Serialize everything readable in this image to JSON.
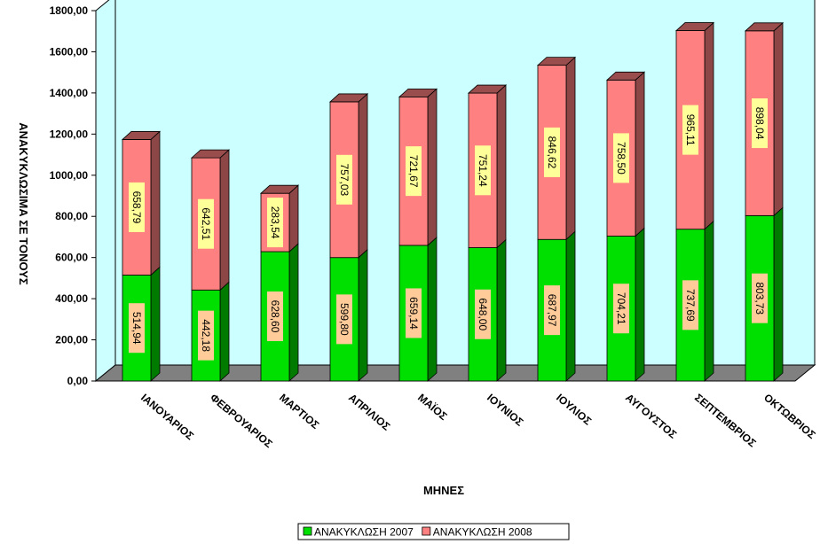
{
  "chart_data": {
    "type": "bar",
    "stacked": true,
    "three_d": true,
    "categories": [
      "ΙΑΝΟΥΑΡΙΟΣ",
      "ΦΕΒΡΟΥΑΡΙΟΣ",
      "ΜΑΡΤΙΟΣ",
      "ΑΠΡΙΛΙΟΣ",
      "ΜΑΪΟΣ",
      "ΙΟΥΝΙΟΣ",
      "ΙΟΥΛΙΟΣ",
      "ΑΥΓΟΥΣΤΟΣ",
      "ΣΕΠΤΕΜΒΡΙΟΣ",
      "ΟΚΤΩΒΡΙΟΣ"
    ],
    "series": [
      {
        "name": "ΑΝΑΚΥΚΛΩΣΗ 2007",
        "color": "#00e000",
        "label_bg": "#ffcc99",
        "values": [
          514.94,
          442.18,
          628.6,
          599.8,
          659.14,
          648.0,
          687.97,
          704.21,
          737.69,
          803.73
        ],
        "labels": [
          "514,94",
          "442,18",
          "628,60",
          "599,80",
          "659,14",
          "648,00",
          "687,97",
          "704,21",
          "737,69",
          "803,73"
        ]
      },
      {
        "name": "ΑΝΑΚΥΚΛΩΣΗ 2008",
        "color": "#ff8080",
        "label_bg": "#ffff99",
        "values": [
          658.79,
          642.51,
          283.54,
          757.03,
          721.67,
          751.24,
          846.62,
          758.5,
          965.11,
          898.04
        ],
        "labels": [
          "658,79",
          "642,51",
          "283,54",
          "757,03",
          "721,67",
          "751,24",
          "846,62",
          "758,50",
          "965,11",
          "898,04"
        ]
      }
    ],
    "xlabel": "ΜΗΝΕΣ",
    "ylabel": "ΑΝΑΚΥΚΛΩΣΙΜΑ ΣΕ ΤΟΝΟΥΣ",
    "ylim": [
      0,
      1800
    ],
    "yticks": [
      "0,00",
      "200,00",
      "400,00",
      "600,00",
      "800,00",
      "1000,00",
      "1200,00",
      "1400,00",
      "1600,00",
      "1800,00"
    ],
    "grid": false,
    "wall_color": "#ccffff",
    "floor_color": "#808080",
    "legend": "bottom"
  }
}
